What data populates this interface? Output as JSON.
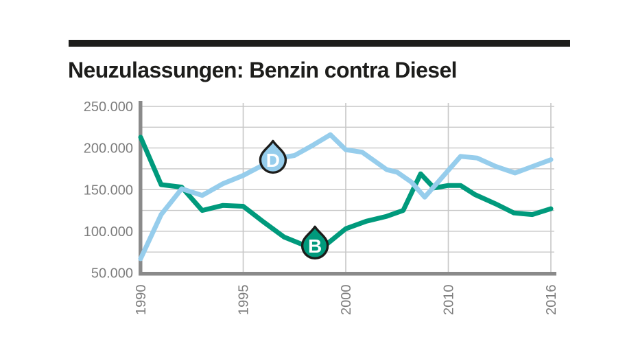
{
  "header": {
    "title": "Neuzulassungen: Benzin contra Diesel"
  },
  "colors": {
    "background": "#ffffff",
    "ink": "#1d1d1b",
    "benzin": "#009a7c",
    "diesel": "#96cdec",
    "axis": "#8a8a8a",
    "grid": "#c7c7c7",
    "label": "#7d7d7d",
    "marker_letter": "#ffffff"
  },
  "chart_data": {
    "type": "line",
    "title": "Neuzulassungen: Benzin contra Diesel",
    "grid": true,
    "legend": "in-chart droplet badges on the lines (D = Diesel, B = Benzin)",
    "y_axis": {
      "min": 50000,
      "max": 250000,
      "grid_step": 25000,
      "ticks": [
        {
          "value": 250000,
          "label": "250.000"
        },
        {
          "value": 200000,
          "label": "200.000"
        },
        {
          "value": 150000,
          "label": "150.000"
        },
        {
          "value": 100000,
          "label": "100.000"
        },
        {
          "value": 50000,
          "label": "50.000"
        }
      ]
    },
    "x_axis": {
      "note": "non-linear year axis drawn on a uniform 0-20 position scale; year tick marks are evenly spaced",
      "range_u": [
        0,
        20
      ],
      "ticks": [
        {
          "u": 0,
          "label": "1990"
        },
        {
          "u": 5,
          "label": "1995"
        },
        {
          "u": 10,
          "label": "2000"
        },
        {
          "u": 15,
          "label": "2010"
        },
        {
          "u": 20,
          "label": "2016"
        }
      ]
    },
    "series": [
      {
        "name": "Benzin",
        "letter": "B",
        "color": "#009a7c",
        "points": [
          [
            0,
            213000
          ],
          [
            1,
            156000
          ],
          [
            2,
            153000
          ],
          [
            3,
            125000
          ],
          [
            4,
            131000
          ],
          [
            5,
            130000
          ],
          [
            6,
            111000
          ],
          [
            7,
            93000
          ],
          [
            8,
            83000
          ],
          [
            9,
            83000
          ],
          [
            10,
            103000
          ],
          [
            11,
            112000
          ],
          [
            12,
            118000
          ],
          [
            12.8,
            125000
          ],
          [
            13.65,
            169000
          ],
          [
            14.3,
            152000
          ],
          [
            15,
            155000
          ],
          [
            15.6,
            155000
          ],
          [
            16.3,
            144000
          ],
          [
            17.3,
            133000
          ],
          [
            18.2,
            122000
          ],
          [
            19.1,
            120000
          ],
          [
            20,
            127000
          ]
        ]
      },
      {
        "name": "Diesel",
        "letter": "D",
        "color": "#96cdec",
        "points": [
          [
            0,
            67000
          ],
          [
            1,
            120000
          ],
          [
            2,
            151000
          ],
          [
            3,
            143000
          ],
          [
            4,
            157000
          ],
          [
            5,
            167000
          ],
          [
            6,
            180000
          ],
          [
            7,
            189000
          ],
          [
            7.5,
            191000
          ],
          [
            8.3,
            202000
          ],
          [
            9.25,
            216000
          ],
          [
            10,
            198000
          ],
          [
            10.8,
            195000
          ],
          [
            12,
            174000
          ],
          [
            12.5,
            171000
          ],
          [
            13.2,
            159000
          ],
          [
            13.85,
            141000
          ],
          [
            15.6,
            190000
          ],
          [
            16.4,
            188000
          ],
          [
            17.3,
            178000
          ],
          [
            18.25,
            170000
          ],
          [
            20,
            186000
          ]
        ]
      }
    ],
    "markers": [
      {
        "letter": "D",
        "series": "Diesel",
        "u": 6.45,
        "value": 187000
      },
      {
        "letter": "B",
        "series": "Benzin",
        "u": 8.5,
        "value": 84000
      }
    ]
  }
}
